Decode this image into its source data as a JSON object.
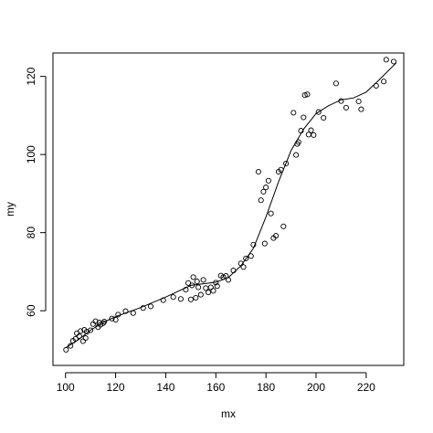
{
  "chart_data": {
    "type": "scatter",
    "title": "",
    "xlabel": "mx",
    "ylabel": "my",
    "xlim": [
      95,
      235
    ],
    "ylim": [
      46,
      126
    ],
    "x_ticks": [
      100,
      120,
      140,
      160,
      180,
      200,
      220
    ],
    "y_ticks": [
      60,
      80,
      100,
      120
    ],
    "x_tick_labels": [
      "100",
      "120",
      "140",
      "160",
      "180",
      "200",
      "220"
    ],
    "y_tick_labels": [
      "60",
      "80",
      "100",
      "120"
    ],
    "grid": false,
    "legend": "none",
    "marker": "open-circle",
    "points": [
      [
        100.2,
        50.0
      ],
      [
        102.0,
        51.0
      ],
      [
        103.0,
        52.3
      ],
      [
        104.0,
        52.8
      ],
      [
        104.5,
        54.2
      ],
      [
        105.5,
        53.5
      ],
      [
        106.0,
        54.8
      ],
      [
        107.0,
        52.2
      ],
      [
        107.5,
        55.1
      ],
      [
        108.0,
        53.0
      ],
      [
        108.5,
        54.6
      ],
      [
        110.0,
        55.0
      ],
      [
        111.0,
        56.6
      ],
      [
        112.0,
        57.3
      ],
      [
        113.0,
        55.8
      ],
      [
        113.5,
        57.0
      ],
      [
        114.0,
        56.4
      ],
      [
        115.0,
        56.8
      ],
      [
        115.5,
        57.2
      ],
      [
        118.5,
        58.0
      ],
      [
        120.0,
        57.7
      ],
      [
        121.0,
        59.0
      ],
      [
        124.0,
        59.9
      ],
      [
        127.0,
        59.4
      ],
      [
        131.0,
        60.7
      ],
      [
        134.0,
        61.1
      ],
      [
        139.0,
        62.7
      ],
      [
        143.0,
        63.5
      ],
      [
        146.0,
        63.0
      ],
      [
        148.0,
        65.4
      ],
      [
        149.0,
        67.1
      ],
      [
        150.0,
        62.9
      ],
      [
        150.5,
        66.5
      ],
      [
        151.0,
        68.6
      ],
      [
        152.0,
        63.3
      ],
      [
        152.5,
        67.5
      ],
      [
        153.0,
        66.0
      ],
      [
        154.0,
        64.1
      ],
      [
        155.0,
        67.9
      ],
      [
        156.0,
        65.8
      ],
      [
        157.0,
        64.7
      ],
      [
        158.0,
        66.0
      ],
      [
        159.0,
        65.1
      ],
      [
        160.0,
        67.2
      ],
      [
        160.5,
        66.3
      ],
      [
        162.0,
        69.0
      ],
      [
        163.0,
        68.6
      ],
      [
        164.0,
        68.9
      ],
      [
        165.0,
        67.9
      ],
      [
        167.0,
        70.3
      ],
      [
        170.0,
        72.1
      ],
      [
        171.0,
        71.2
      ],
      [
        172.0,
        73.4
      ],
      [
        174.0,
        74.0
      ],
      [
        175.0,
        76.9
      ],
      [
        177.0,
        95.6
      ],
      [
        178.0,
        88.3
      ],
      [
        179.0,
        90.5
      ],
      [
        179.5,
        77.2
      ],
      [
        180.0,
        91.6
      ],
      [
        181.0,
        93.3
      ],
      [
        182.0,
        84.9
      ],
      [
        183.0,
        78.6
      ],
      [
        184.0,
        79.2
      ],
      [
        185.0,
        95.6
      ],
      [
        186.0,
        96.1
      ],
      [
        187.0,
        81.6
      ],
      [
        188.0,
        97.7
      ],
      [
        191.0,
        110.7
      ],
      [
        192.0,
        99.9
      ],
      [
        192.5,
        102.7
      ],
      [
        193.0,
        103.2
      ],
      [
        194.0,
        106.1
      ],
      [
        195.0,
        109.5
      ],
      [
        195.5,
        115.2
      ],
      [
        196.5,
        115.4
      ],
      [
        197.0,
        105.1
      ],
      [
        198.0,
        106.2
      ],
      [
        199.0,
        105.0
      ],
      [
        201.0,
        110.9
      ],
      [
        203.0,
        109.4
      ],
      [
        208.0,
        118.2
      ],
      [
        210.0,
        113.7
      ],
      [
        212.0,
        112.0
      ],
      [
        217.0,
        113.6
      ],
      [
        218.0,
        111.6
      ],
      [
        224.0,
        117.6
      ],
      [
        227.0,
        118.7
      ],
      [
        228.0,
        124.3
      ],
      [
        231.0,
        123.8
      ]
    ],
    "smooth_line": [
      [
        100,
        50.5
      ],
      [
        105,
        52.5
      ],
      [
        110,
        55.0
      ],
      [
        115,
        57.0
      ],
      [
        120,
        58.5
      ],
      [
        130,
        60.8
      ],
      [
        140,
        63.5
      ],
      [
        150,
        66.5
      ],
      [
        160,
        67.3
      ],
      [
        165,
        68.5
      ],
      [
        170,
        71.5
      ],
      [
        175,
        76.0
      ],
      [
        180,
        84.0
      ],
      [
        185,
        93.0
      ],
      [
        190,
        101.0
      ],
      [
        195,
        106.5
      ],
      [
        200,
        110.5
      ],
      [
        205,
        112.5
      ],
      [
        210,
        114.0
      ],
      [
        215,
        114.5
      ],
      [
        220,
        116.0
      ],
      [
        225,
        119.0
      ],
      [
        232,
        123.5
      ]
    ]
  }
}
